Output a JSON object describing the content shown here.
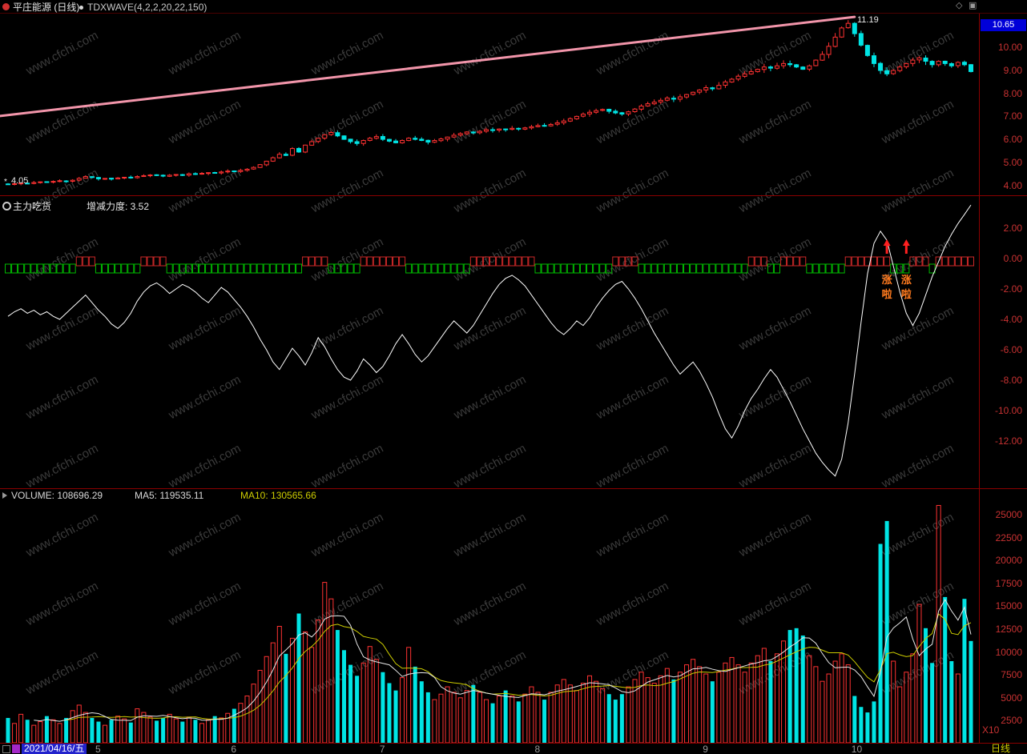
{
  "header": {
    "title": "平庄能源 (日线)",
    "formula": "TDXWAVE(4,2,2,20,22,150)",
    "price_badge": "10.65",
    "diamond_icon_glyph": "◇",
    "window_icon_glyph": "▣"
  },
  "price_panel": {
    "high_annotation": "11.19",
    "low_marker": "*",
    "low_annotation": "4.05",
    "axis": [
      {
        "label": "10.00",
        "value": 10
      },
      {
        "label": "9.00",
        "value": 9
      },
      {
        "label": "8.00",
        "value": 8
      },
      {
        "label": "7.00",
        "value": 7
      },
      {
        "label": "6.00",
        "value": 6
      },
      {
        "label": "5.00",
        "value": 5
      },
      {
        "label": "4.00",
        "value": 4
      }
    ]
  },
  "indicator_panel": {
    "name": "主力吃货",
    "reading": "增减力度: 3.52",
    "signal_text_top": "涨",
    "signal_text_bottom": "啦",
    "signal_days": [
      136,
      139
    ],
    "axis": [
      {
        "label": "2.00",
        "value": 2
      },
      {
        "label": "0.00",
        "value": 0
      },
      {
        "label": "-2.00",
        "value": -2
      },
      {
        "label": "-4.00",
        "value": -4
      },
      {
        "label": "-6.00",
        "value": -6
      },
      {
        "label": "-8.00",
        "value": -8
      },
      {
        "label": "-10.00",
        "value": -10
      },
      {
        "label": "-12.00",
        "value": -12
      }
    ]
  },
  "volume_panel": {
    "volume_label": "VOLUME: 108696.29",
    "ma5_label": "MA5: 119535.11",
    "ma10_label": "MA10: 130565.66",
    "multiplier": "X10",
    "axis": [
      {
        "label": "25000",
        "value": 25000
      },
      {
        "label": "22500",
        "value": 22500
      },
      {
        "label": "20000",
        "value": 20000
      },
      {
        "label": "17500",
        "value": 17500
      },
      {
        "label": "15000",
        "value": 15000
      },
      {
        "label": "12500",
        "value": 12500
      },
      {
        "label": "10000",
        "value": 10000
      },
      {
        "label": "7500",
        "value": 7500
      },
      {
        "label": "5000",
        "value": 5000
      },
      {
        "label": "2500",
        "value": 2500
      }
    ]
  },
  "footer": {
    "date": "2021/04/16/五",
    "period": "日线",
    "months": [
      {
        "label": "5",
        "day": 14
      },
      {
        "label": "6",
        "day": 35
      },
      {
        "label": "7",
        "day": 58
      },
      {
        "label": "8",
        "day": 82
      },
      {
        "label": "9",
        "day": 108
      },
      {
        "label": "10",
        "day": 131
      }
    ]
  },
  "watermark": "www.cfchi.com",
  "colors": {
    "up": "#ff3232",
    "down": "#00e4e4",
    "trend_line": "#ff9eb4",
    "indicator_line": "#ffffff",
    "band_green": "#00bb00",
    "band_red": "#cc2828",
    "ma5": "#e8e8e8",
    "ma10": "#cccc00",
    "axis_text": "#c83232",
    "panel_border": "#8b0000",
    "badge_bg": "#0000d8",
    "date_bg": "#2222cc",
    "dow_box": "#a428c8",
    "signal_arrow": "#ff2020",
    "signal_text": "#ff7a1e",
    "watermark_color": "#3b3b3b",
    "month_text": "#999999",
    "period_text": "#cfcf00"
  },
  "chart_data": {
    "type": "candlestick",
    "days": 150,
    "peak": {
      "day": 130,
      "high": 11.19
    },
    "low": {
      "day": 0,
      "low": 4.05
    },
    "trend_line": {
      "x1_day": -1.2,
      "price1": 7.02,
      "x2_day": 131,
      "price2": 11.33
    },
    "price_axis_range": [
      3.6,
      11.45
    ],
    "oscillator_axis_range": [
      -14.8,
      3.8
    ],
    "volume_axis_range": [
      0,
      27000
    ],
    "closes": [
      4.05,
      4.07,
      4.1,
      4.08,
      4.12,
      4.15,
      4.13,
      4.17,
      4.2,
      4.18,
      4.22,
      4.3,
      4.38,
      4.35,
      4.28,
      4.3,
      4.27,
      4.32,
      4.35,
      4.33,
      4.38,
      4.42,
      4.45,
      4.43,
      4.4,
      4.44,
      4.47,
      4.45,
      4.5,
      4.48,
      4.52,
      4.55,
      4.53,
      4.58,
      4.62,
      4.6,
      4.65,
      4.7,
      4.78,
      4.9,
      5.05,
      5.2,
      5.35,
      5.3,
      5.6,
      5.45,
      5.75,
      5.9,
      6.05,
      6.2,
      6.3,
      6.15,
      6.0,
      5.9,
      5.82,
      5.95,
      6.05,
      6.12,
      6.0,
      5.92,
      5.85,
      5.95,
      6.05,
      6.0,
      5.95,
      5.88,
      5.95,
      6.02,
      6.1,
      6.18,
      6.25,
      6.32,
      6.28,
      6.35,
      6.42,
      6.4,
      6.45,
      6.43,
      6.48,
      6.45,
      6.5,
      6.55,
      6.6,
      6.58,
      6.65,
      6.72,
      6.8,
      6.9,
      7.0,
      7.1,
      7.18,
      7.25,
      7.3,
      7.22,
      7.15,
      7.1,
      7.2,
      7.32,
      7.45,
      7.55,
      7.62,
      7.7,
      7.8,
      7.75,
      7.85,
      7.95,
      8.05,
      8.15,
      8.25,
      8.2,
      8.35,
      8.5,
      8.62,
      8.75,
      8.85,
      8.95,
      9.05,
      9.15,
      9.1,
      9.2,
      9.3,
      9.25,
      9.15,
      9.05,
      9.2,
      9.45,
      9.7,
      10.05,
      10.45,
      10.85,
      11.05,
      10.6,
      10.1,
      9.65,
      9.3,
      9.0,
      8.85,
      9.0,
      9.15,
      9.3,
      9.45,
      9.55,
      9.4,
      9.25,
      9.4,
      9.3,
      9.2,
      9.35,
      9.25,
      8.95
    ],
    "oscillator": [
      -3.8,
      -3.5,
      -3.3,
      -3.6,
      -3.4,
      -3.7,
      -3.5,
      -3.8,
      -4.0,
      -3.6,
      -3.2,
      -2.8,
      -2.4,
      -2.9,
      -3.4,
      -3.8,
      -4.3,
      -4.6,
      -4.2,
      -3.6,
      -2.8,
      -2.2,
      -1.8,
      -1.6,
      -1.9,
      -2.3,
      -2.0,
      -1.7,
      -1.9,
      -2.2,
      -2.6,
      -2.9,
      -2.4,
      -1.9,
      -2.2,
      -2.7,
      -3.2,
      -3.8,
      -4.5,
      -5.3,
      -6.0,
      -6.8,
      -7.3,
      -6.6,
      -5.9,
      -6.4,
      -7.0,
      -6.2,
      -5.2,
      -5.8,
      -6.6,
      -7.3,
      -7.8,
      -8.0,
      -7.4,
      -6.6,
      -7.0,
      -7.5,
      -7.1,
      -6.4,
      -5.6,
      -5.0,
      -5.6,
      -6.3,
      -6.8,
      -6.4,
      -5.8,
      -5.2,
      -4.6,
      -4.1,
      -4.5,
      -4.9,
      -4.4,
      -3.7,
      -3.0,
      -2.3,
      -1.7,
      -1.3,
      -1.1,
      -1.4,
      -1.8,
      -2.4,
      -3.0,
      -3.6,
      -4.2,
      -4.7,
      -5.0,
      -4.6,
      -4.1,
      -4.4,
      -3.9,
      -3.2,
      -2.6,
      -2.1,
      -1.7,
      -1.5,
      -2.0,
      -2.6,
      -3.3,
      -4.1,
      -4.9,
      -5.6,
      -6.3,
      -7.0,
      -7.6,
      -7.2,
      -6.8,
      -7.4,
      -8.2,
      -9.1,
      -10.2,
      -11.2,
      -11.8,
      -11.0,
      -10.0,
      -9.2,
      -8.6,
      -7.9,
      -7.3,
      -7.8,
      -8.6,
      -9.4,
      -10.3,
      -11.2,
      -12.0,
      -12.8,
      -13.4,
      -13.9,
      -14.3,
      -13.2,
      -10.8,
      -7.6,
      -4.2,
      -1.0,
      1.0,
      1.8,
      1.2,
      -0.5,
      -2.2,
      -3.6,
      -4.4,
      -3.6,
      -2.4,
      -1.2,
      -0.2,
      0.8,
      1.6,
      2.3,
      2.9,
      3.52
    ],
    "band": "GGGGGGGGGGGRRRGGGGGGGRRRRGGGGGGGGGGGGGGGGGGGGGRRRRGGGGGRRRRRRRGGGGGGGGGGRRRRRRRRRRGGGGGGGGGGGGRRRRGGGGGGGGGGGGGGGGGRRRGGRRRRGGGGGGRRRRRRRGGGRRRGRRRRRR",
    "volumes": [
      2800,
      2200,
      3200,
      2600,
      2000,
      2400,
      3000,
      2600,
      2200,
      2800,
      3600,
      4200,
      3400,
      2800,
      2400,
      2000,
      2600,
      3000,
      2700,
      2300,
      3800,
      3400,
      2900,
      2500,
      2800,
      3200,
      2700,
      2400,
      2900,
      2600,
      2200,
      2600,
      3000,
      2800,
      3300,
      3800,
      4400,
      5200,
      6500,
      8000,
      9500,
      11000,
      12800,
      9800,
      11500,
      14200,
      12200,
      10500,
      13500,
      17600,
      15800,
      12400,
      10200,
      8600,
      7400,
      8800,
      10600,
      9200,
      7800,
      6600,
      5800,
      7200,
      10500,
      8400,
      6800,
      5600,
      4800,
      5400,
      6200,
      5600,
      5000,
      5800,
      6400,
      5600,
      4800,
      4400,
      5200,
      5800,
      5200,
      4600,
      5400,
      6200,
      5600,
      4800,
      5600,
      6400,
      7000,
      6400,
      5800,
      6600,
      7400,
      6800,
      6000,
      5400,
      4800,
      5400,
      6200,
      7000,
      7800,
      7200,
      6600,
      7400,
      8200,
      7000,
      7800,
      8600,
      9200,
      8400,
      7600,
      6800,
      7800,
      8800,
      9400,
      8600,
      7800,
      8800,
      9600,
      10400,
      9000,
      9800,
      11200,
      12400,
      12600,
      11800,
      9600,
      8400,
      6800,
      7600,
      9000,
      9800,
      8600,
      5200,
      4000,
      3400,
      4600,
      21800,
      24300,
      9000,
      6200,
      7800,
      9800,
      15200,
      12600,
      8800,
      26000,
      16000,
      9000,
      7600,
      15800,
      11200
    ]
  }
}
